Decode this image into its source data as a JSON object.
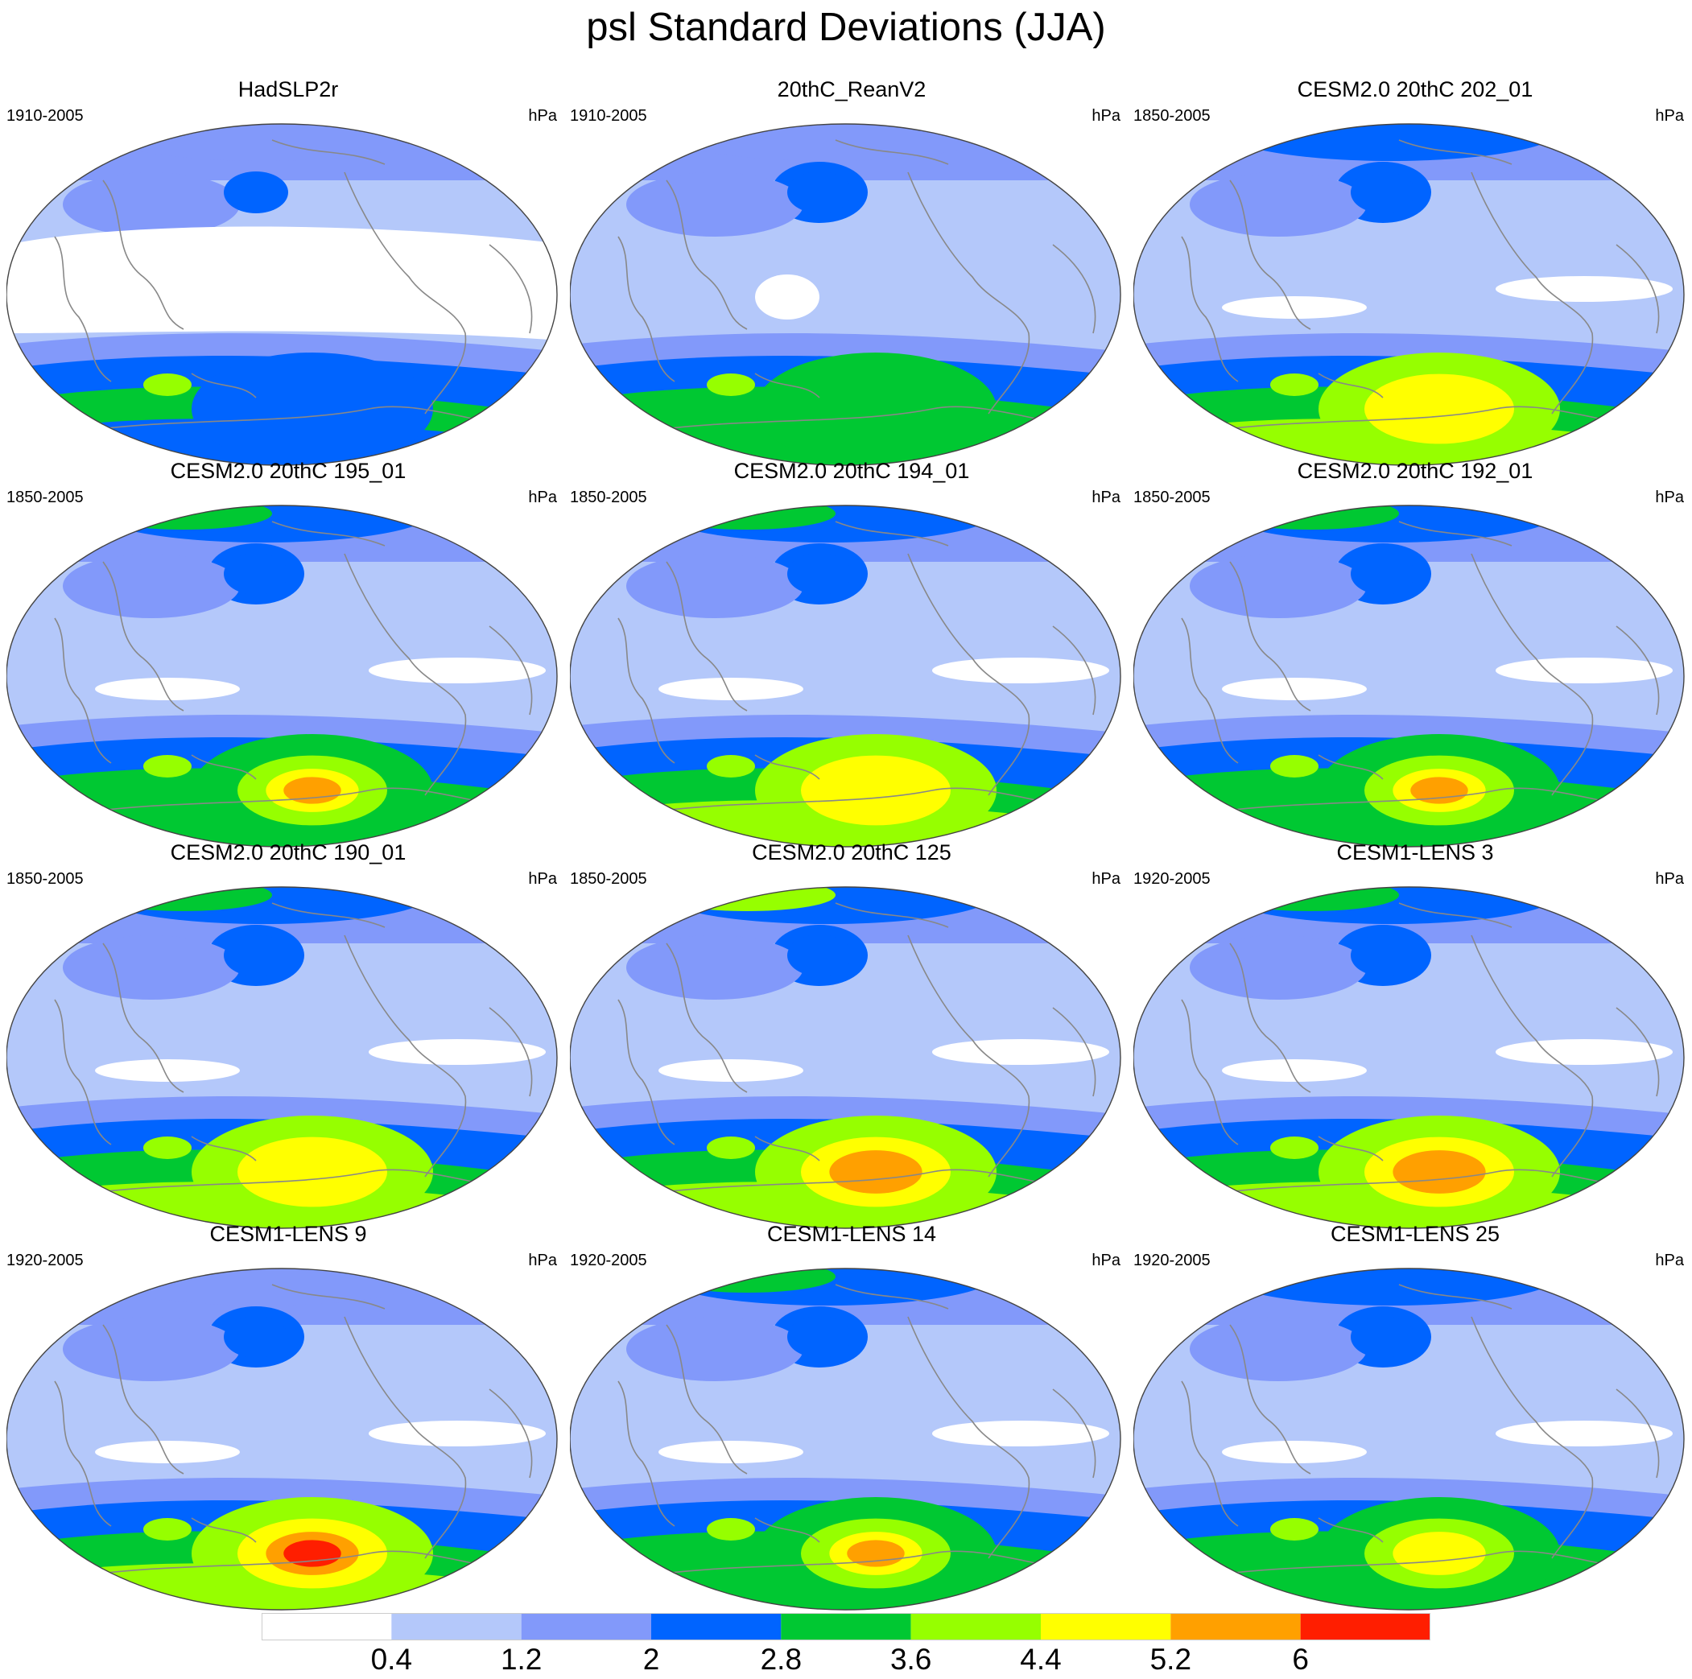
{
  "title": "psl Standard Deviations (JJA)",
  "units": "hPa",
  "panels": [
    {
      "title": "HadSLP2r",
      "period": "1910-2005",
      "style": "obs",
      "high_ne": 0,
      "high_nh": 2,
      "south_core": 3,
      "core_rise": 3
    },
    {
      "title": "20thC_ReanV2",
      "period": "1910-2005",
      "style": "rean",
      "high_ne": 0,
      "high_nh": 2,
      "south_core": 4,
      "core_rise": 4
    },
    {
      "title": "CESM2.0 20thC 202_01",
      "period": "1850-2005",
      "style": "model",
      "high_ne": 3,
      "high_nh": 3,
      "south_core": 5,
      "core_rise": 6
    },
    {
      "title": "CESM2.0 20thC 195_01",
      "period": "1850-2005",
      "style": "model",
      "high_ne": 4,
      "high_nh": 3,
      "south_core": 4,
      "core_rise": 7
    },
    {
      "title": "CESM2.0 20thC 194_01",
      "period": "1850-2005",
      "style": "model",
      "high_ne": 4,
      "high_nh": 3,
      "south_core": 5,
      "core_rise": 6
    },
    {
      "title": "CESM2.0 20thC 192_01",
      "period": "1850-2005",
      "style": "model",
      "high_ne": 4,
      "high_nh": 3,
      "south_core": 4,
      "core_rise": 7
    },
    {
      "title": "CESM2.0 20thC 190_01",
      "period": "1850-2005",
      "style": "model",
      "high_ne": 4,
      "high_nh": 3,
      "south_core": 5,
      "core_rise": 6
    },
    {
      "title": "CESM2.0 20thC 125",
      "period": "1850-2005",
      "style": "model",
      "high_ne": 5,
      "high_nh": 3,
      "south_core": 5,
      "core_rise": 7
    },
    {
      "title": "CESM1-LENS 3",
      "period": "1920-2005",
      "style": "model",
      "high_ne": 4,
      "high_nh": 3,
      "south_core": 5,
      "core_rise": 7
    },
    {
      "title": "CESM1-LENS 9",
      "period": "1920-2005",
      "style": "model",
      "high_ne": 3,
      "high_nh": 2,
      "south_core": 5,
      "core_rise": 8
    },
    {
      "title": "CESM1-LENS 14",
      "period": "1920-2005",
      "style": "model",
      "high_ne": 4,
      "high_nh": 3,
      "south_core": 4,
      "core_rise": 7
    },
    {
      "title": "CESM1-LENS 25",
      "period": "1920-2005",
      "style": "model",
      "high_ne": 3,
      "high_nh": 3,
      "south_core": 4,
      "core_rise": 6
    }
  ],
  "colorbar": {
    "colors": [
      "#ffffff",
      "#b4c8fa",
      "#8299fa",
      "#0064ff",
      "#00c832",
      "#96ff00",
      "#ffff00",
      "#ffa000",
      "#ff1e00"
    ],
    "labels": [
      "0.4",
      "1.2",
      "2",
      "2.8",
      "3.6",
      "4.4",
      "5.2",
      "6"
    ]
  }
}
